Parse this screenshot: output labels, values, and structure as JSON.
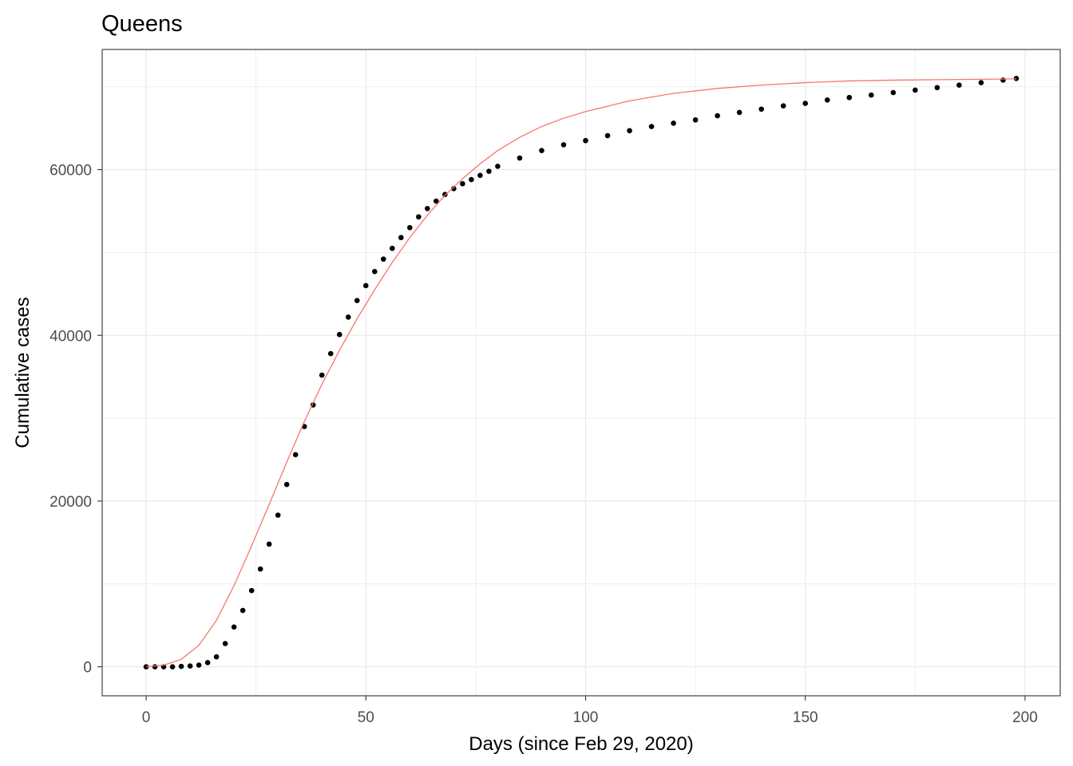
{
  "chart_data": {
    "type": "scatter",
    "title": "Queens",
    "xlabel": "Days (since Feb 29, 2020)",
    "ylabel": "Cumulative cases",
    "xlim": [
      -10,
      208
    ],
    "ylim": [
      -3500,
      74500
    ],
    "x_ticks": [
      0,
      50,
      100,
      150,
      200
    ],
    "x_tick_labels": [
      "0",
      "50",
      "100",
      "150",
      "200"
    ],
    "y_ticks": [
      0,
      20000,
      40000,
      60000
    ],
    "y_tick_labels": [
      "0",
      "20000",
      "40000",
      "60000"
    ],
    "x_minor_ticks": [
      25,
      75,
      125,
      175
    ],
    "y_minor_ticks": [
      10000,
      30000,
      50000,
      70000
    ],
    "grid": true,
    "legend": "none",
    "colors": {
      "points": "#000000",
      "fit": "#F8766D",
      "grid": "#EBEBEB",
      "panel_border": "#333333"
    },
    "series": [
      {
        "kind": "points",
        "x": [
          0,
          2,
          4,
          6,
          8,
          10,
          12,
          14,
          16,
          18,
          20,
          22,
          24,
          26,
          28,
          30,
          32,
          34,
          36,
          38,
          40,
          42,
          44,
          46,
          48,
          50,
          52,
          54,
          56,
          58,
          60,
          62,
          64,
          66,
          68,
          70,
          72,
          74,
          76,
          78,
          80,
          85,
          90,
          95,
          100,
          105,
          110,
          115,
          120,
          125,
          130,
          135,
          140,
          145,
          150,
          155,
          160,
          165,
          170,
          175,
          180,
          185,
          190,
          195,
          198
        ],
        "y": [
          0,
          0,
          0,
          0,
          50,
          100,
          200,
          500,
          1200,
          2800,
          4800,
          6800,
          9200,
          11800,
          14800,
          18300,
          22000,
          25600,
          29000,
          31600,
          35200,
          37800,
          40100,
          42200,
          44200,
          46000,
          47700,
          49200,
          50500,
          51800,
          53000,
          54300,
          55300,
          56200,
          57000,
          57700,
          58300,
          58800,
          59300,
          59800,
          60400,
          61400,
          62300,
          63000,
          63500,
          64100,
          64700,
          65200,
          65600,
          66000,
          66500,
          66900,
          67300,
          67700,
          68000,
          68400,
          68700,
          69000,
          69300,
          69600,
          69900,
          70200,
          70500,
          70800,
          71000
        ]
      },
      {
        "kind": "line",
        "x": [
          0,
          4,
          8,
          12,
          16,
          20,
          24,
          28,
          32,
          36,
          40,
          44,
          48,
          52,
          56,
          60,
          64,
          68,
          72,
          76,
          80,
          85,
          90,
          95,
          100,
          110,
          120,
          130,
          140,
          150,
          160,
          170,
          180,
          190,
          198
        ],
        "y": [
          0,
          200,
          900,
          2600,
          5600,
          9800,
          14600,
          19600,
          24700,
          29600,
          34100,
          38200,
          42000,
          45500,
          48800,
          51800,
          54500,
          56900,
          58900,
          60700,
          62300,
          63900,
          65200,
          66200,
          67000,
          68300,
          69200,
          69800,
          70200,
          70500,
          70700,
          70800,
          70850,
          70900,
          70950
        ]
      }
    ]
  }
}
